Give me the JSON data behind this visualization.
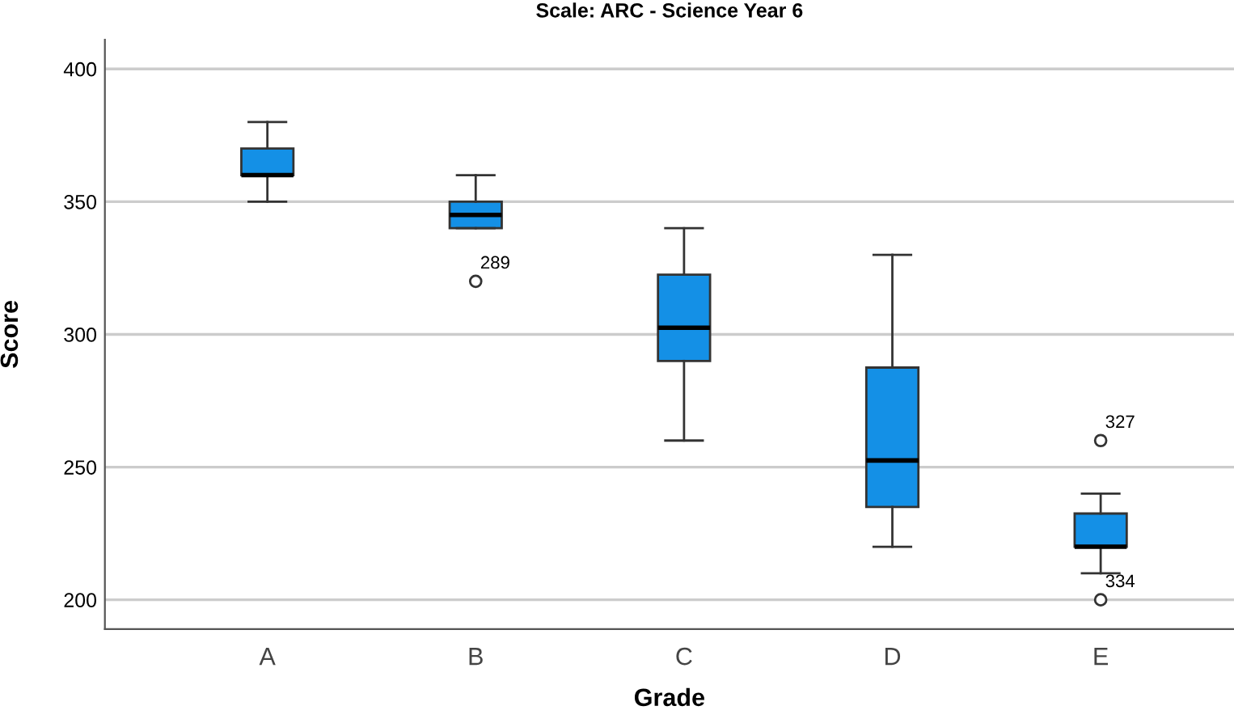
{
  "chart_data": {
    "type": "box",
    "title": "Scale: ARC - Science Year 6",
    "xlabel": "Grade",
    "ylabel": "Score",
    "categories": [
      "A",
      "B",
      "C",
      "D",
      "E"
    ],
    "series": [
      {
        "color": "#1490e6",
        "boxes": [
          {
            "low": 350,
            "q1": 360,
            "median": 360,
            "q3": 370,
            "high": 380
          },
          {
            "low": 340,
            "q1": 340,
            "median": 345,
            "q3": 350,
            "high": 360,
            "outliers": [
              320
            ]
          },
          {
            "low": 260,
            "q1": 290,
            "median": 302.5,
            "q3": 322.5,
            "high": 340
          },
          {
            "low": 220,
            "q1": 235,
            "median": 252.5,
            "q3": 287.5,
            "high": 330
          },
          {
            "low": 210,
            "q1": 220,
            "median": 220,
            "q3": 232.5,
            "high": 240,
            "outliers": [
              260,
              200
            ]
          }
        ]
      }
    ],
    "annotations": [
      "289",
      "327",
      "334"
    ],
    "ylim": [
      189,
      411
    ],
    "yticks": [
      200,
      250,
      300,
      350,
      400
    ],
    "grid": "y",
    "legend": false
  }
}
